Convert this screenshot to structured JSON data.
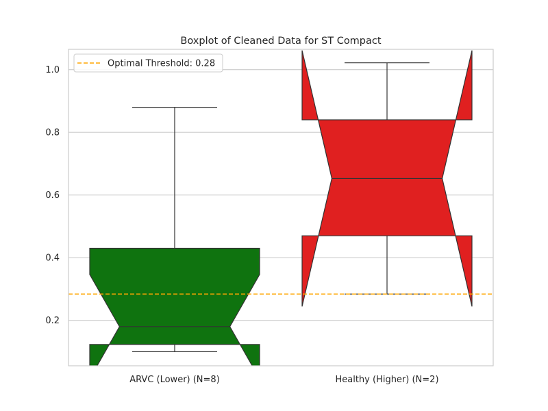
{
  "chart_data": {
    "type": "boxplot",
    "title": "Boxplot of Cleaned Data for ST Compact",
    "xlabel": "",
    "ylabel": "",
    "ylim": [
      0.055,
      1.065
    ],
    "yticks": [
      0.2,
      0.4,
      0.6,
      0.8,
      1.0
    ],
    "ytick_labels": [
      "0.2",
      "0.4",
      "0.6",
      "0.8",
      "1.0"
    ],
    "grid": true,
    "notched": true,
    "categories": [
      "ARVC (Lower) (N=8)",
      "Healthy (Higher) (N=2)"
    ],
    "boxes": [
      {
        "label": "ARVC (Lower) (N=8)",
        "color": "#0f730f",
        "whisker_low": 0.1,
        "q1": 0.123,
        "median": 0.18,
        "q3": 0.43,
        "whisker_high": 0.88,
        "notch_low": 0.0135,
        "notch_high": 0.3465
      },
      {
        "label": "Healthy (Higher) (N=2)",
        "color": "#e02020",
        "whisker_low": 0.284,
        "q1": 0.47,
        "median": 0.653,
        "q3": 0.84,
        "whisker_high": 1.022,
        "notch_low": 0.2445,
        "notch_high": 1.0615
      }
    ],
    "threshold": {
      "value": 0.284,
      "label": "Optimal Threshold: 0.28",
      "color": "#ffa500",
      "style": "dashed"
    },
    "legend_position": "top-left"
  }
}
